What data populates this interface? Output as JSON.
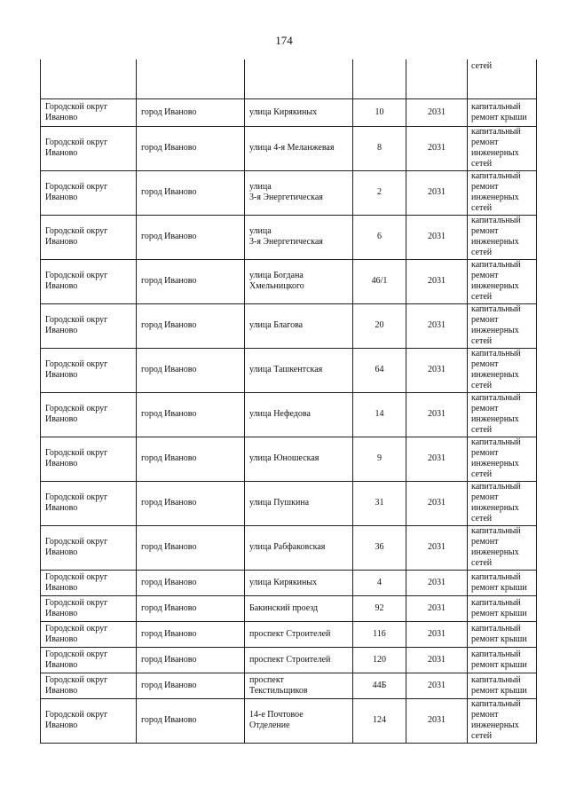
{
  "page_number": "174",
  "continued_row": {
    "work": "сетей"
  },
  "rows": [
    {
      "district": "Городской округ\nИваново",
      "city": "город Иваново",
      "street": "улица Кирякиных",
      "house": "10",
      "year": "2031",
      "work": "капитальный\nремонт крыши"
    },
    {
      "district": "Городской округ\nИваново",
      "city": "город Иваново",
      "street": "улица 4-я Меланжевая",
      "house": "8",
      "year": "2031",
      "work": "капитальный\nремонт\nинженерных\nсетей"
    },
    {
      "district": "Городской округ\nИваново",
      "city": "город Иваново",
      "street": "улица\n3-я Энергетическая",
      "house": "2",
      "year": "2031",
      "work": "капитальный\nремонт\nинженерных\nсетей"
    },
    {
      "district": "Городской округ\nИваново",
      "city": "город Иваново",
      "street": "улица\n3-я Энергетическая",
      "house": "6",
      "year": "2031",
      "work": "капитальный\nремонт\nинженерных\nсетей"
    },
    {
      "district": "Городской округ\nИваново",
      "city": "город Иваново",
      "street": "улица Богдана\nХмельницкого",
      "house": "46/1",
      "year": "2031",
      "work": "капитальный\nремонт\nинженерных\nсетей"
    },
    {
      "district": "Городской округ\nИваново",
      "city": "город Иваново",
      "street": "улица Благова",
      "house": "20",
      "year": "2031",
      "work": "капитальный\nремонт\nинженерных\nсетей"
    },
    {
      "district": "Городской округ\nИваново",
      "city": "город Иваново",
      "street": "улица Ташкентская",
      "house": "64",
      "year": "2031",
      "work": "капитальный\nремонт\nинженерных\nсетей"
    },
    {
      "district": "Городской округ\nИваново",
      "city": "город Иваново",
      "street": "улица Нефедова",
      "house": "14",
      "year": "2031",
      "work": "капитальный\nремонт\nинженерных\nсетей"
    },
    {
      "district": "Городской округ\nИваново",
      "city": "город Иваново",
      "street": "улица Юношеская",
      "house": "9",
      "year": "2031",
      "work": "капитальный\nремонт\nинженерных\nсетей"
    },
    {
      "district": "Городской округ\nИваново",
      "city": "город Иваново",
      "street": "улица Пушкина",
      "house": "31",
      "year": "2031",
      "work": "капитальный\nремонт\nинженерных\nсетей"
    },
    {
      "district": "Городской округ\nИваново",
      "city": "город Иваново",
      "street": "улица Рабфаковская",
      "house": "36",
      "year": "2031",
      "work": "капитальный\nремонт\nинженерных\nсетей"
    },
    {
      "district": "Городской округ\nИваново",
      "city": "город Иваново",
      "street": "улица Кирякиных",
      "house": "4",
      "year": "2031",
      "work": "капитальный\nремонт крыши"
    },
    {
      "district": "Городской округ\nИваново",
      "city": "город Иваново",
      "street": "Бакинский проезд",
      "house": "92",
      "year": "2031",
      "work": "капитальный\nремонт крыши"
    },
    {
      "district": "Городской округ\nИваново",
      "city": "город Иваново",
      "street": "проспект Строителей",
      "house": "116",
      "year": "2031",
      "work": "капитальный\nремонт крыши"
    },
    {
      "district": "Городской округ\nИваново",
      "city": "город Иваново",
      "street": "проспект Строителей",
      "house": "120",
      "year": "2031",
      "work": "капитальный\nремонт крыши"
    },
    {
      "district": "Городской округ\nИваново",
      "city": "город Иваново",
      "street": "проспект\nТекстильщиков",
      "house": "44Б",
      "year": "2031",
      "work": "капитальный\nремонт крыши"
    },
    {
      "district": "Городской округ\nИваново",
      "city": "город Иваново",
      "street": "14-е Почтовое\nОтделение",
      "house": "124",
      "year": "2031",
      "work": "капитальный\nремонт\nинженерных\nсетей"
    }
  ]
}
